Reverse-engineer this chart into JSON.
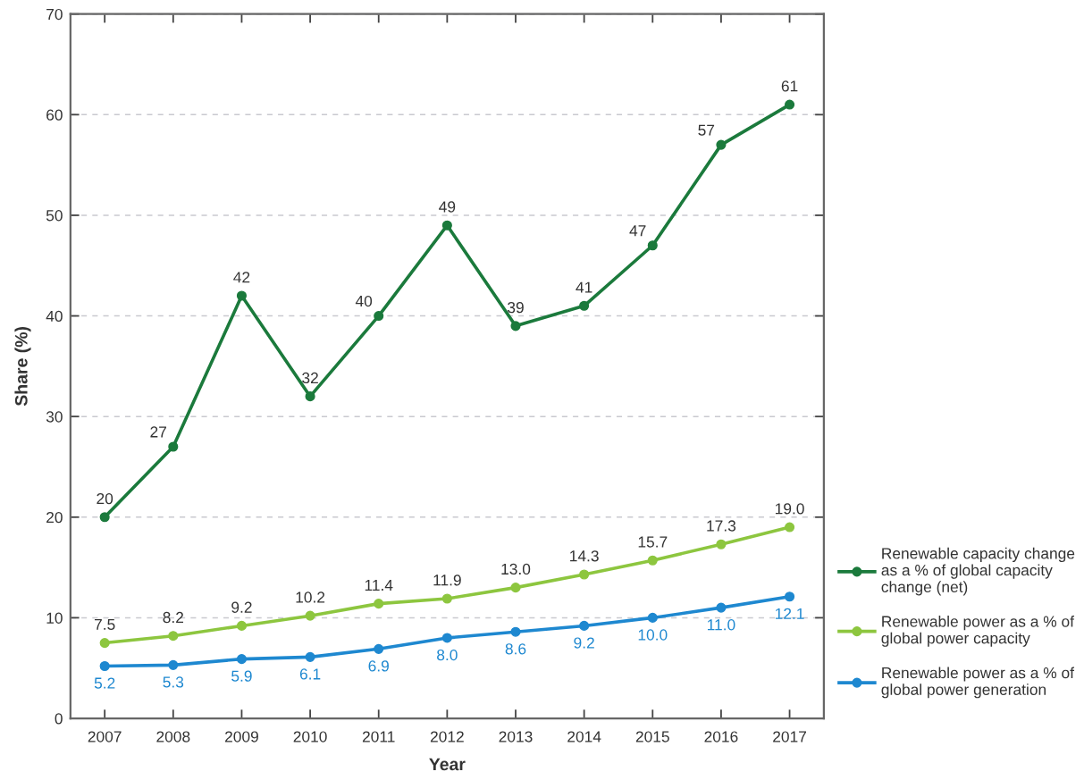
{
  "chart_data": {
    "type": "line",
    "xlabel": "Year",
    "ylabel": "Share (%)",
    "categories": [
      "2007",
      "2008",
      "2009",
      "2010",
      "2011",
      "2012",
      "2013",
      "2014",
      "2015",
      "2016",
      "2017"
    ],
    "series": [
      {
        "name": "Renewable capacity change as a % of global capacity change (net)",
        "color": "#1b7a3c",
        "values": [
          20,
          27,
          42,
          32,
          40,
          49,
          39,
          41,
          47,
          57,
          61
        ],
        "value_labels": [
          "20",
          "27",
          "42",
          "32",
          "40",
          "49",
          "39",
          "41",
          "47",
          "57",
          "61"
        ]
      },
      {
        "name": "Renewable power as a % of global power capacity",
        "color": "#8dc63f",
        "values": [
          7.5,
          8.2,
          9.2,
          10.2,
          11.4,
          11.9,
          13.0,
          14.3,
          15.7,
          17.3,
          19.0
        ],
        "value_labels": [
          "7.5",
          "8.2",
          "9.2",
          "10.2",
          "11.4",
          "11.9",
          "13.0",
          "14.3",
          "15.7",
          "17.3",
          "19.0"
        ]
      },
      {
        "name": "Renewable power as a % of global power generation",
        "color": "#1e88d0",
        "values": [
          5.2,
          5.3,
          5.9,
          6.1,
          6.9,
          8.0,
          8.6,
          9.2,
          10.0,
          11.0,
          12.1
        ],
        "value_labels": [
          "5.2",
          "5.3",
          "5.9",
          "6.1",
          "6.9",
          "8.0",
          "8.6",
          "9.2",
          "10.0",
          "11.0",
          "12.1"
        ]
      }
    ],
    "ylim": [
      0,
      70
    ],
    "yticks": [
      0,
      10,
      20,
      30,
      40,
      50,
      60,
      70
    ],
    "grid": "y",
    "legend": "right",
    "marker": "circle",
    "line_style": "solid"
  }
}
